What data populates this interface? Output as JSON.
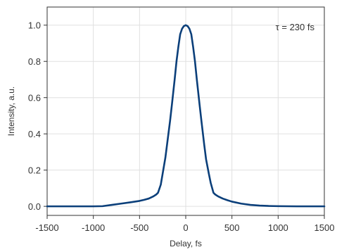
{
  "chart_data": {
    "type": "line",
    "xlabel": "Delay, fs",
    "ylabel": "Intensity, a.u.",
    "xlim": [
      -1500,
      1500
    ],
    "ylim": [
      -0.05,
      1.1
    ],
    "x_ticks": [
      -1500,
      -1000,
      -500,
      0,
      500,
      1000,
      1500
    ],
    "y_ticks": [
      0.0,
      0.2,
      0.4,
      0.6,
      0.8,
      1.0
    ],
    "x_tick_labels": [
      "-1500",
      "-1000",
      "-500",
      "0",
      "500",
      "1000",
      "1500"
    ],
    "y_tick_labels": [
      "0.0",
      "0.2",
      "0.4",
      "0.6",
      "0.8",
      "1.0"
    ],
    "grid": true,
    "annotation": "τ = 230 fs",
    "line_color": "#0b3f7a",
    "series": [
      {
        "x": [
          -1500,
          -1200,
          -1000,
          -900,
          -800,
          -700,
          -600,
          -500,
          -450,
          -400,
          -350,
          -320,
          -300,
          -270,
          -250,
          -220,
          -200,
          -170,
          -150,
          -120,
          -100,
          -80,
          -60,
          -40,
          -20,
          0,
          20,
          40,
          60,
          80,
          100,
          120,
          150,
          170,
          200,
          220,
          250,
          270,
          300,
          320,
          350,
          400,
          450,
          500,
          600,
          700,
          800,
          900,
          1000,
          1200,
          1500
        ],
        "y": [
          0.0,
          0.0,
          0.0,
          0.001,
          0.008,
          0.015,
          0.022,
          0.03,
          0.036,
          0.043,
          0.055,
          0.065,
          0.075,
          0.12,
          0.18,
          0.27,
          0.35,
          0.47,
          0.56,
          0.7,
          0.8,
          0.88,
          0.95,
          0.98,
          0.995,
          1.0,
          0.995,
          0.98,
          0.95,
          0.88,
          0.8,
          0.7,
          0.56,
          0.47,
          0.34,
          0.26,
          0.18,
          0.13,
          0.075,
          0.065,
          0.055,
          0.043,
          0.034,
          0.026,
          0.015,
          0.008,
          0.004,
          0.002,
          0.001,
          0.0,
          0.0
        ]
      }
    ]
  }
}
